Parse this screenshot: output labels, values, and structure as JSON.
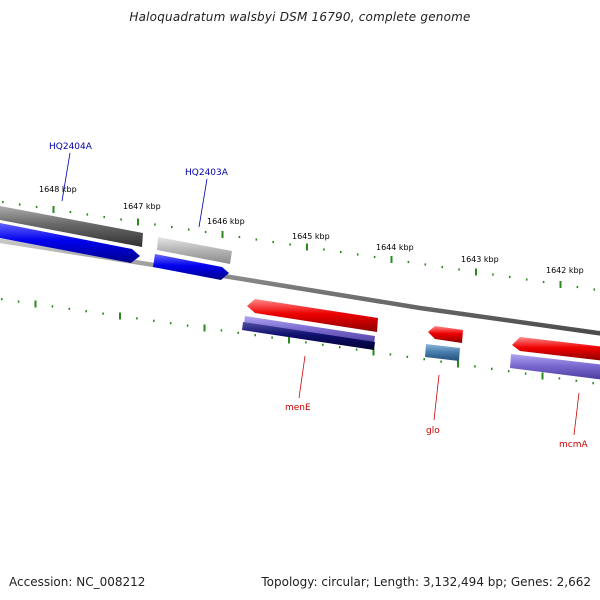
{
  "title": "Haloquadratum walsbyi DSM 16790, complete genome",
  "footer": {
    "accession": "Accession: NC_008212",
    "summary": "Topology: circular; Length: 3,132,494 bp; Genes: 2,662"
  },
  "colors": {
    "background": "#ffffff",
    "backbone": "#7a7a7a",
    "tick": "#2a8a1e",
    "forward_gene": "#0000ee",
    "reverse_gene": "#ee0000",
    "forward_label": "#0000aa",
    "reverse_label": "#cc0000",
    "other_forward": "#6a6a6a",
    "pseudo_forward": "#b0b0b0",
    "hit_purple": "#7a6ad0",
    "hit_navy": "#101070",
    "hit_steel": "#4a80b0"
  },
  "scale_ticks": [
    {
      "id": "1648",
      "label": "1648 kbp"
    },
    {
      "id": "1647",
      "label": "1647 kbp"
    },
    {
      "id": "1646",
      "label": "1646 kbp"
    },
    {
      "id": "1645",
      "label": "1645 kbp"
    },
    {
      "id": "1644",
      "label": "1644 kbp"
    },
    {
      "id": "1643",
      "label": "1643 kbp"
    },
    {
      "id": "1642",
      "label": "1642 kbp"
    }
  ],
  "gene_labels": {
    "forward": [
      {
        "id": "hq2404a",
        "label": "HQ2404A"
      },
      {
        "id": "hq2403a",
        "label": "HQ2403A"
      }
    ],
    "reverse": [
      {
        "id": "mene",
        "label": "menE"
      },
      {
        "id": "glo",
        "label": "glo"
      },
      {
        "id": "mcma",
        "label": "mcmA"
      }
    ]
  }
}
